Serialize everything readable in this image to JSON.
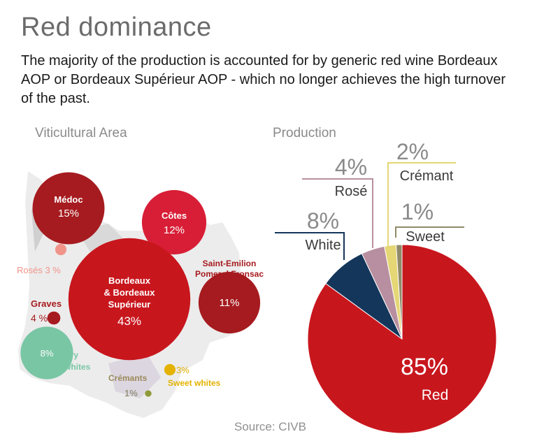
{
  "header": {
    "title": "Red dominance",
    "subtitle": "The majority of the production is accounted for by generic red wine Bordeaux AOP or Bordeaux Supérieur AOP - which no longer achieves the high turnover of the past."
  },
  "source": "Source: CIVB",
  "colors": {
    "red": "#c8161d",
    "dark_red": "#a61b1f",
    "navy": "#14365a",
    "rose": "#b88fa0",
    "cremant": "#e5d676",
    "sweet": "#8f8a6a",
    "teal": "#79c6a4",
    "rose_bubble": "#f0948a",
    "gold": "#e4b200",
    "olive": "#8f9a3a",
    "map_gray": "#ececec"
  },
  "chart_data": [
    {
      "type": "bubble",
      "title": "Viticultural Area",
      "items": [
        {
          "name": "Médoc",
          "value": 15,
          "label": "15%"
        },
        {
          "name": "Côtes",
          "value": 12,
          "label": "12%"
        },
        {
          "name": "Bordeaux & Bordeaux Supérieur",
          "name_lines": [
            "Bordeaux",
            "& Bordeaux",
            "Supérieur"
          ],
          "value": 43,
          "label": "43%"
        },
        {
          "name": "Saint-Emilion Pomerol Fronsac",
          "name_lines": [
            "Saint-Emilion",
            "Pomerol Fronsac"
          ],
          "value": 11,
          "label": "11%"
        },
        {
          "name": "Rosés",
          "value": 3,
          "label": "3 %"
        },
        {
          "name": "Graves",
          "value": 4,
          "label": "4 %"
        },
        {
          "name": "Dry whites",
          "name_lines": [
            "Dry",
            "whites"
          ],
          "value": 8,
          "label": "8%"
        },
        {
          "name": "Crémants",
          "value": 1,
          "label": "1%"
        },
        {
          "name": "Sweet whites",
          "value": 3,
          "label": "3%"
        }
      ]
    },
    {
      "type": "pie",
      "title": "Production",
      "slices": [
        {
          "label": "Red",
          "value": 85,
          "text": "85%"
        },
        {
          "label": "White",
          "value": 8,
          "text": "8%"
        },
        {
          "label": "Rosé",
          "value": 4,
          "text": "4%"
        },
        {
          "label": "Crémant",
          "value": 2,
          "text": "2%"
        },
        {
          "label": "Sweet",
          "value": 1,
          "text": "1%"
        }
      ]
    }
  ]
}
